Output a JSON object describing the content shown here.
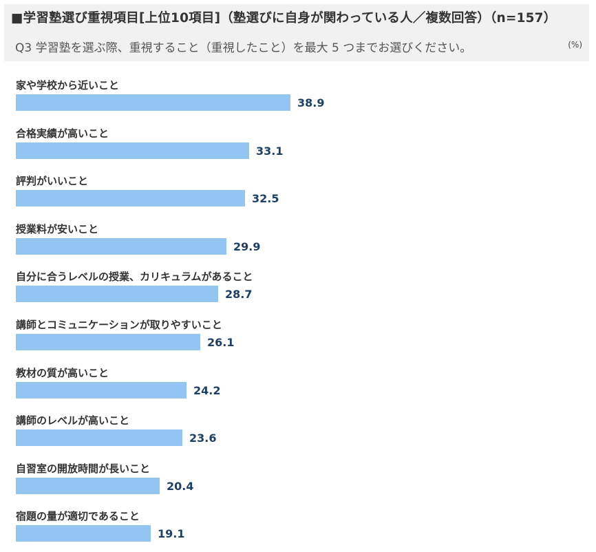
{
  "header": {
    "title": "■学習塾選び重視項目[上位10項目]（塾選びに自身が関わっている人／複数回答）（n=157）",
    "subtitle": "Q3 学習塾を選ぶ際、重視すること（重視したこと）を最大 5 つまでお選びください。",
    "unit": "(%)"
  },
  "colors": {
    "bar": "#92c5f2",
    "value_label": "#1f3f63",
    "header_bg": "#f1f1f1"
  },
  "chart_data": {
    "type": "bar",
    "orientation": "horizontal",
    "title": "■学習塾選び重視項目[上位10項目]（塾選びに自身が関わっている人／複数回答）（n=157）",
    "unit": "(%)",
    "categories": [
      "家や学校から近いこと",
      "合格実績が高いこと",
      "評判がいいこと",
      "授業料が安いこと",
      "自分に合うレベルの授業、カリキュラムがあること",
      "講師とコミュニケーションが取りやすいこと",
      "教材の質が高いこと",
      "講師のレベルが高いこと",
      "自習室の開放時間が長いこと",
      "宿題の量が適切であること"
    ],
    "values": [
      38.9,
      33.1,
      32.5,
      29.9,
      28.7,
      26.1,
      24.2,
      23.6,
      20.4,
      19.1
    ],
    "value_labels": [
      "38.9",
      "33.1",
      "32.5",
      "29.9",
      "28.7",
      "26.1",
      "24.2",
      "23.6",
      "20.4",
      "19.1"
    ],
    "xlim": [
      0,
      80
    ],
    "grid": false,
    "legend": "none"
  }
}
